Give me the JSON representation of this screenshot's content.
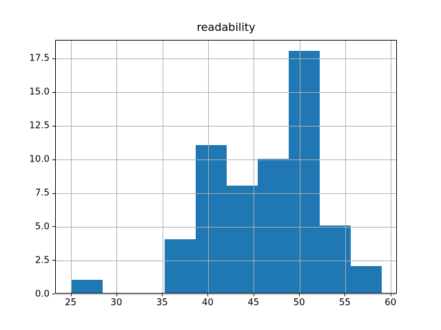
{
  "title": "readability",
  "chart_data": {
    "type": "histogram",
    "title": "readability",
    "xlabel": "",
    "ylabel": "",
    "bin_edges": [
      25.0,
      28.4,
      31.8,
      35.2,
      38.6,
      42.0,
      45.4,
      48.8,
      52.2,
      55.6,
      59.0
    ],
    "counts": [
      1,
      0,
      0,
      4,
      11,
      8,
      10,
      18,
      5,
      2
    ],
    "total_count": 59,
    "xlim": [
      23.3,
      60.7
    ],
    "ylim": [
      0,
      18.9
    ],
    "xticks": [
      25,
      30,
      35,
      40,
      45,
      50,
      55,
      60
    ],
    "xtick_labels": [
      "25",
      "30",
      "35",
      "40",
      "45",
      "50",
      "55",
      "60"
    ],
    "yticks": [
      0.0,
      2.5,
      5.0,
      7.5,
      10.0,
      12.5,
      15.0,
      17.5
    ],
    "ytick_labels": [
      "0.0",
      "2.5",
      "5.0",
      "7.5",
      "10.0",
      "12.5",
      "15.0",
      "17.5"
    ],
    "grid": true,
    "grid_over_bars": true,
    "legend": false,
    "colors": {
      "bar": "#1f77b4",
      "grid": "#b0b0b0",
      "spine": "#000000",
      "background": "#ffffff",
      "text": "#000000"
    }
  }
}
